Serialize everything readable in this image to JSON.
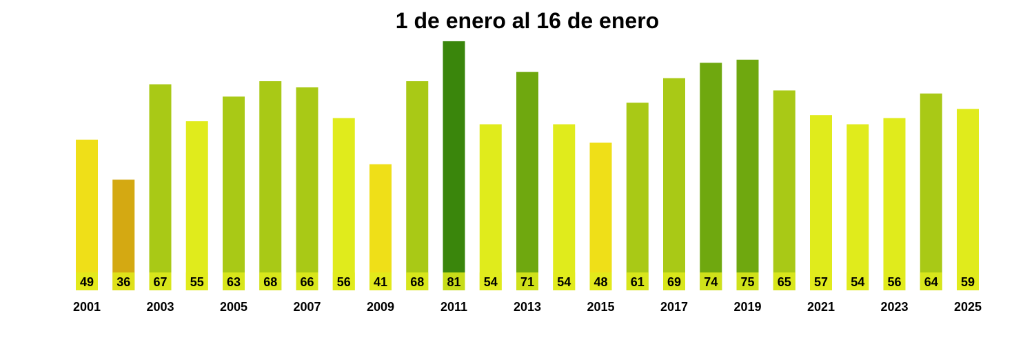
{
  "chart_data": {
    "type": "bar",
    "title": "1 de enero al 16 de enero",
    "xlabel": "",
    "ylabel": "",
    "grid": false,
    "legend": "none",
    "categories": [
      "2001",
      "2002",
      "2003",
      "2004",
      "2005",
      "2006",
      "2007",
      "2008",
      "2009",
      "2010",
      "2011",
      "2012",
      "2013",
      "2014",
      "2015",
      "2016",
      "2017",
      "2018",
      "2019",
      "2020",
      "2021",
      "2022",
      "2023",
      "2024",
      "2025"
    ],
    "tick_labels": [
      "2001",
      "2003",
      "2005",
      "2007",
      "2009",
      "2011",
      "2013",
      "2015",
      "2017",
      "2019",
      "2021",
      "2023",
      "2025"
    ],
    "values": [
      49,
      36,
      67,
      55,
      63,
      68,
      66,
      56,
      41,
      68,
      81,
      54,
      71,
      54,
      48,
      61,
      69,
      74,
      75,
      65,
      57,
      54,
      56,
      64,
      59
    ],
    "colors": [
      "#efdf18",
      "#d4a912",
      "#a9c916",
      "#e0eb1c",
      "#a9c916",
      "#a9c916",
      "#a9c916",
      "#e0eb1c",
      "#efdf18",
      "#a9c916",
      "#3a860c",
      "#e0eb1c",
      "#6fa80f",
      "#e0eb1c",
      "#efdf18",
      "#a9c916",
      "#a9c916",
      "#6fa80f",
      "#6fa80f",
      "#a9c916",
      "#e0eb1c",
      "#e0eb1c",
      "#e0eb1c",
      "#a9c916",
      "#e0eb1c"
    ],
    "label_bg_color": "#e0eb1c"
  }
}
